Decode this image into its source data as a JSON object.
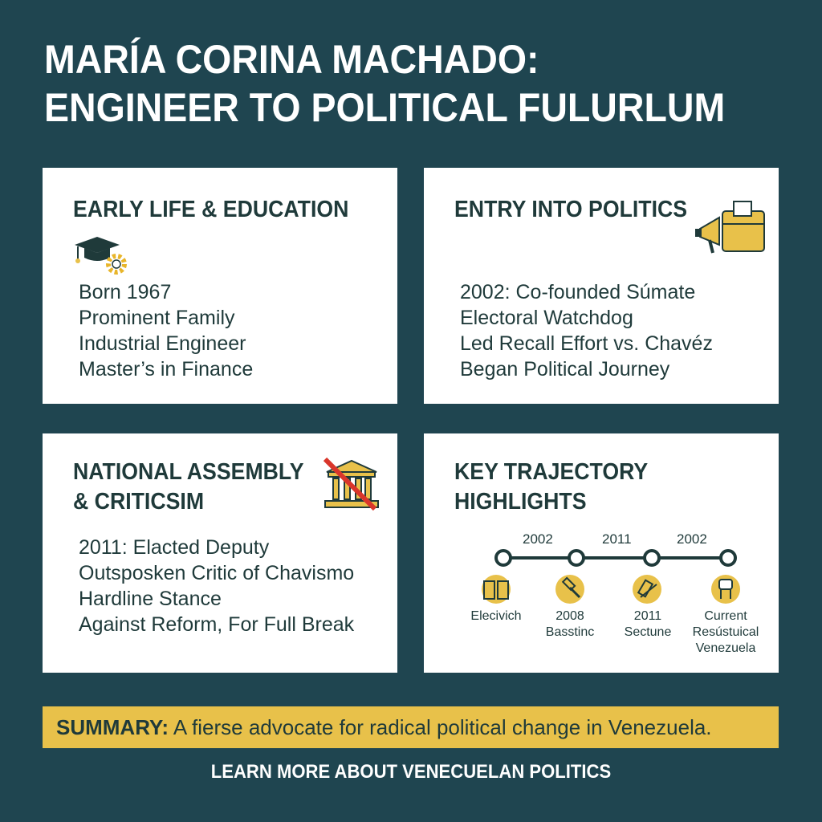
{
  "title": {
    "line1": "MARÍA CORINA MACHADO:",
    "line2": "ENGINEER TO POLITICAL FULURLUM"
  },
  "cards": [
    {
      "heading": [
        "EARLY LIFE & EDUCATION"
      ],
      "icon": "graduation-cap-gear-icon",
      "lines": [
        "Born 1967",
        "Prominent Family",
        "Industrial Engineer",
        "Master’s in Finance"
      ]
    },
    {
      "heading": [
        "ENTRY INTO POLITICS"
      ],
      "icon": "megaphone-ballot-box-icon",
      "lines": [
        "2002: Co-founded Súmate",
        "Electoral Watchdog",
        "Led Recall Effort vs. Chavéz",
        "Began Political Journey"
      ]
    },
    {
      "heading": [
        "NATIONAL ASSEMBLY",
        "& CRITICSIM"
      ],
      "icon": "crossed-out-parliament-icon",
      "lines": [
        "2011: Elacted Deputy",
        "Outsposken Critic of Chavismo",
        "Hardline Stance",
        "Against Reform, For Full Break"
      ]
    },
    {
      "heading": [
        "KEY TRAJECTORY",
        "HIGHLIGHTS"
      ]
    }
  ],
  "timeline": {
    "years": [
      "2002",
      "2011",
      "2002"
    ],
    "milestones": [
      {
        "icon": "book-icon",
        "label": [
          "Elecivich"
        ]
      },
      {
        "icon": "gavel-icon",
        "label": [
          "2008",
          "Basstinc"
        ]
      },
      {
        "icon": "document-pen-icon",
        "label": [
          "2011",
          "Sectune"
        ]
      },
      {
        "icon": "raised-fist-icon",
        "label": [
          "Current",
          "Resústuical",
          "Venezuela"
        ]
      }
    ]
  },
  "summary": {
    "label": "SUMMARY:",
    "text": " A fierse advocate for radical political change in Venezuela."
  },
  "footer": "LEARN MORE ABOUT VENECUELAN POLITICS",
  "colors": {
    "background": "#1f4550",
    "accent": "#e8c14a",
    "card": "#ffffff",
    "text": "#1f3a3a"
  }
}
